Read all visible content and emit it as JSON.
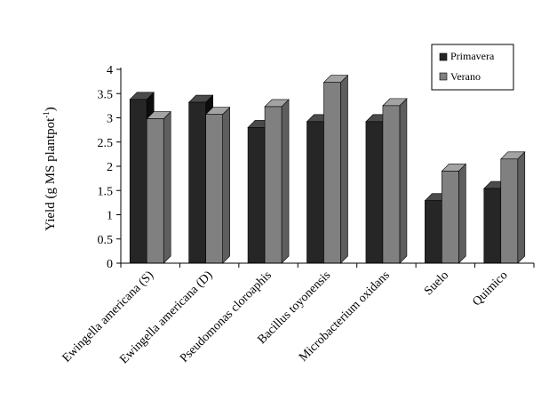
{
  "chart_data": {
    "type": "bar",
    "title": "",
    "xlabel": "",
    "ylabel": "Yield (g MS plantpot",
    "ylabel_superscript": "-1",
    "ylabel_close": ")",
    "ylim": [
      0,
      4
    ],
    "yticks": [
      "0",
      "0.5",
      "1",
      "1.5",
      "2",
      "2.5",
      "3",
      "3.5",
      "4"
    ],
    "grid": false,
    "legend_position": "top-right",
    "categories": [
      "Ewingella americana (S)",
      "Ewingella americana (D)",
      "Pseudomonas cloroaphis",
      "Bacillus toyonensis",
      "Microbacterium oxidans",
      "Suelo",
      "Quimico"
    ],
    "series": [
      {
        "name": "Primavera",
        "color": "#262626",
        "color_side": "#0d0d0d",
        "color_top": "#4a4a4a",
        "values": [
          3.38,
          3.32,
          2.8,
          2.92,
          2.92,
          1.29,
          1.54
        ]
      },
      {
        "name": "Verano",
        "color": "#808080",
        "color_side": "#5e5e5e",
        "color_top": "#a3a3a3",
        "values": [
          2.98,
          3.07,
          3.23,
          3.73,
          3.25,
          1.9,
          2.15
        ]
      }
    ]
  }
}
